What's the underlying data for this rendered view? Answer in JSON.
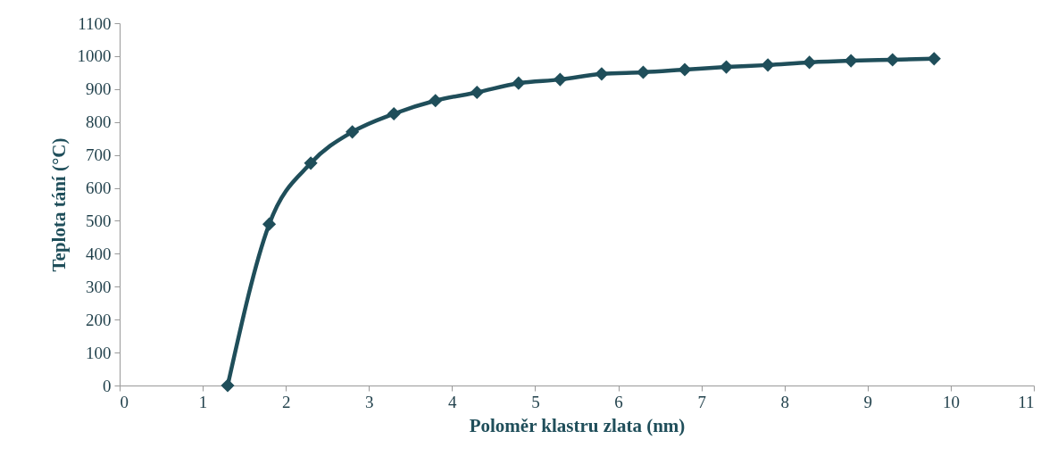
{
  "chart_data": {
    "type": "line",
    "xlabel": "Poloměr klastru zlata (nm)",
    "ylabel": "Teplota tání (°C)",
    "x": [
      1.3,
      1.8,
      2.3,
      2.8,
      3.3,
      3.8,
      4.3,
      4.8,
      5.3,
      5.8,
      6.3,
      6.8,
      7.3,
      7.8,
      8.3,
      8.8,
      9.3,
      9.8
    ],
    "series": [
      {
        "color": "#1f4e5a",
        "values": [
          0,
          490,
          675,
          770,
          825,
          865,
          890,
          918,
          929,
          946,
          951,
          959,
          967,
          973,
          981,
          986,
          989,
          992
        ]
      }
    ],
    "xlim": [
      0,
      11
    ],
    "xticks": [
      0,
      1,
      2,
      3,
      4,
      5,
      6,
      7,
      8,
      9,
      10,
      11
    ],
    "ylim": [
      0,
      1100
    ],
    "yticks": [
      0,
      100,
      200,
      300,
      400,
      500,
      600,
      700,
      800,
      900,
      1000,
      1100
    ],
    "grid": false,
    "legend": false,
    "marker": "diamond",
    "line_style": "solid"
  }
}
